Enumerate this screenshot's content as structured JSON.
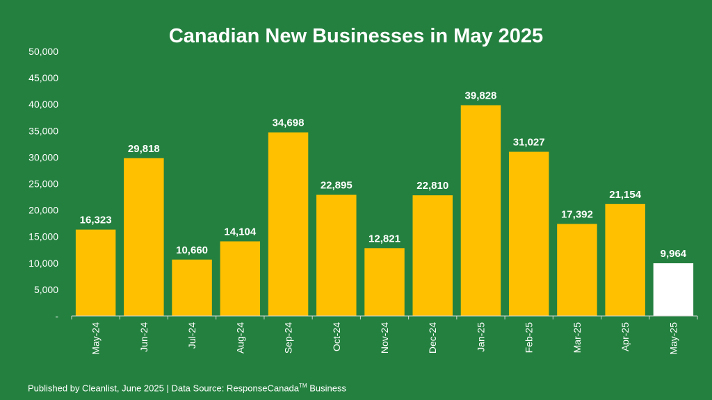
{
  "chart_data": {
    "type": "bar",
    "title": "Canadian New Businesses in May 2025",
    "xlabel": "",
    "ylabel": "",
    "ylim": [
      0,
      50000
    ],
    "yticks": [
      "-",
      "5,000",
      "10,000",
      "15,000",
      "20,000",
      "25,000",
      "30,000",
      "35,000",
      "40,000",
      "45,000",
      "50,000"
    ],
    "grid": false,
    "legend": "none",
    "categories": [
      "May-24",
      "Jun-24",
      "Jul-24",
      "Aug-24",
      "Sep-24",
      "Oct-24",
      "Nov-24",
      "Dec-24",
      "Jan-25",
      "Feb-25",
      "Mar-25",
      "Apr-25",
      "May-25"
    ],
    "values": [
      16323,
      29818,
      10660,
      14104,
      34698,
      22895,
      12821,
      22810,
      39828,
      31027,
      17392,
      21154,
      9964
    ],
    "value_labels": [
      "16,323",
      "29,818",
      "10,660",
      "14,104",
      "34,698",
      "22,895",
      "12,821",
      "22,810",
      "39,828",
      "31,027",
      "17,392",
      "21,154",
      "9,964"
    ],
    "colors": {
      "background": "#24803f",
      "bar": "#ffc000",
      "highlight_bar": "#ffffff",
      "text": "#ffffff",
      "axis": "#d9d9d9"
    },
    "highlight_index": 12
  },
  "footer": {
    "prefix": "Published by Cleanlist, June 2025 | Data Source: ResponseCanada",
    "tm": "TM",
    "suffix": " Business"
  }
}
